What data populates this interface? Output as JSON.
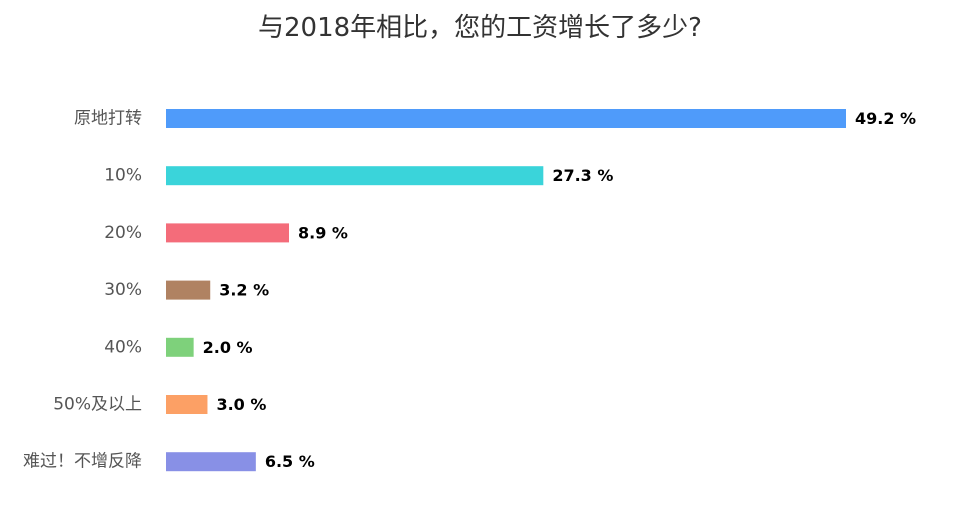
{
  "chart_data": {
    "type": "bar",
    "orientation": "horizontal",
    "title": "与2018年相比，您的工资增长了多少?",
    "categories": [
      "原地打转",
      "10%",
      "20%",
      "30%",
      "40%",
      "50%及以上",
      "难过！不增反降"
    ],
    "values": [
      49.2,
      27.3,
      8.9,
      3.2,
      2.0,
      3.0,
      6.5
    ],
    "value_labels": [
      "49.2 %",
      "27.3 %",
      "8.9 %",
      "3.2 %",
      "2.0 %",
      "3.0 %",
      "6.5 %"
    ],
    "colors": [
      "#4f9bfa",
      "#3ad4da",
      "#f46c7a",
      "#b08262",
      "#7ed17b",
      "#fca065",
      "#8890e6"
    ],
    "xlim": [
      0,
      49.2
    ],
    "grid": false,
    "legend": "none"
  }
}
